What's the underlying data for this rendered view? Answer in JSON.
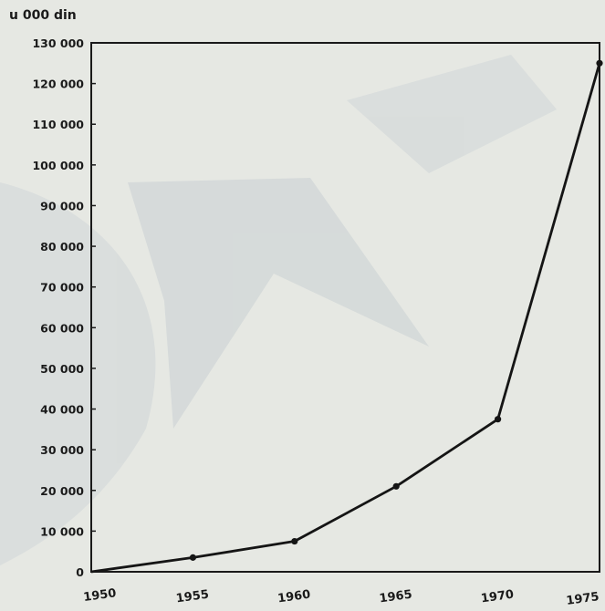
{
  "chart_data": {
    "type": "line",
    "title": "",
    "xlabel": "",
    "ylabel": "u 000 din",
    "x": [
      1950,
      1955,
      1960,
      1965,
      1970,
      1975
    ],
    "series": [
      {
        "values": [
          0,
          3500,
          7500,
          21000,
          37500,
          125000
        ]
      }
    ],
    "xlim": [
      1950,
      1975
    ],
    "ylim": [
      0,
      130000
    ],
    "x_ticks": [
      1950,
      1955,
      1960,
      1965,
      1970,
      1975
    ],
    "x_tick_labels": [
      "1950",
      "1955",
      "1960",
      "1965",
      "1970",
      "1975"
    ],
    "y_ticks": [
      0,
      10000,
      20000,
      30000,
      40000,
      50000,
      60000,
      70000,
      80000,
      90000,
      100000,
      110000,
      120000,
      130000
    ],
    "y_tick_labels": [
      "0",
      "10 000",
      "20 000",
      "30 000",
      "40 000",
      "50 000",
      "60 000",
      "70 000",
      "80 000",
      "90 000",
      "100 000",
      "110 000",
      "120 000",
      "130 000"
    ],
    "grid": false,
    "legend": "none",
    "colors": {
      "line": "#151515",
      "frame": "#1a1a1a",
      "background": "#e6e8e3",
      "watermark": "#c3cbd0"
    }
  }
}
